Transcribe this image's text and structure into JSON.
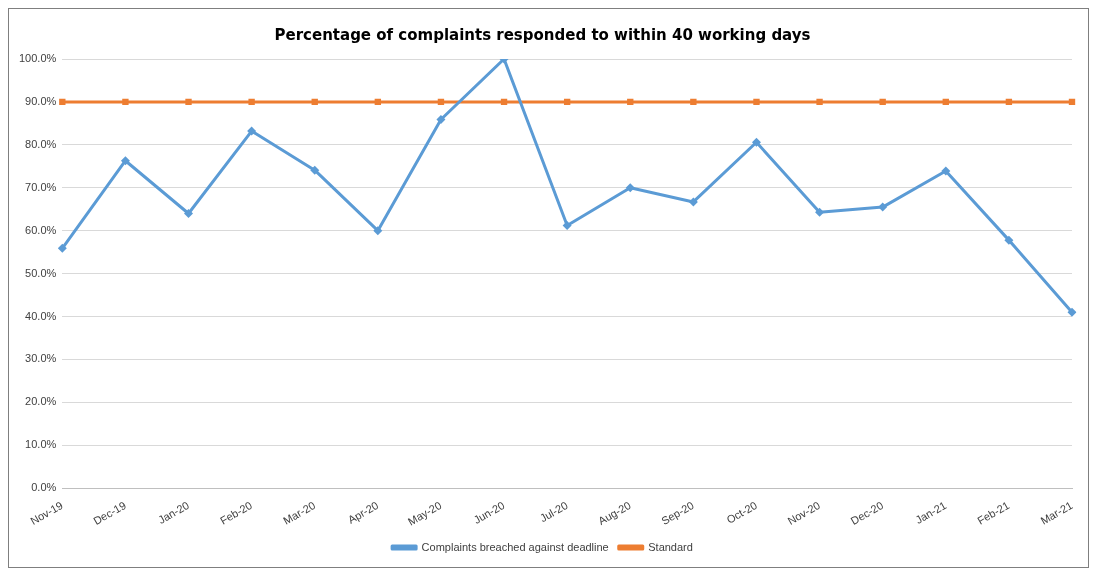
{
  "chart_data": {
    "type": "line",
    "title": "Percentage of complaints responded to within 40 working days",
    "categories": [
      "Nov-19",
      "Dec-19",
      "Jan-20",
      "Feb-20",
      "Mar-20",
      "Apr-20",
      "May-20",
      "Jun-20",
      "Jul-20",
      "Aug-20",
      "Sep-20",
      "Oct-20",
      "Nov-20",
      "Dec-20",
      "Jan-21",
      "Feb-21",
      "Mar-21"
    ],
    "series": [
      {
        "name": "Complaints breached against deadline",
        "color": "#5b9bd5",
        "marker": "diamond",
        "values": [
          55.9,
          76.3,
          64.0,
          83.2,
          74.1,
          60.0,
          85.9,
          100.0,
          61.2,
          70.0,
          66.7,
          80.6,
          64.3,
          65.5,
          73.9,
          57.8,
          41.0
        ]
      },
      {
        "name": "Standard",
        "color": "#ed7d31",
        "marker": "square",
        "values": [
          90,
          90,
          90,
          90,
          90,
          90,
          90,
          90,
          90,
          90,
          90,
          90,
          90,
          90,
          90,
          90,
          90
        ]
      }
    ],
    "ylim": [
      0,
      100
    ],
    "yticks": [
      {
        "value": 0,
        "label": "0.0%"
      },
      {
        "value": 10,
        "label": "10.0%"
      },
      {
        "value": 20,
        "label": "20.0%"
      },
      {
        "value": 30,
        "label": "30.0%"
      },
      {
        "value": 40,
        "label": "40.0%"
      },
      {
        "value": 50,
        "label": "50.0%"
      },
      {
        "value": 60,
        "label": "60.0%"
      },
      {
        "value": 70,
        "label": "70.0%"
      },
      {
        "value": 80,
        "label": "80.0%"
      },
      {
        "value": 90,
        "label": "90.0%"
      },
      {
        "value": 100,
        "label": "100.0%"
      }
    ],
    "grid": "y",
    "legend": "bottom",
    "line_style": "solid"
  }
}
